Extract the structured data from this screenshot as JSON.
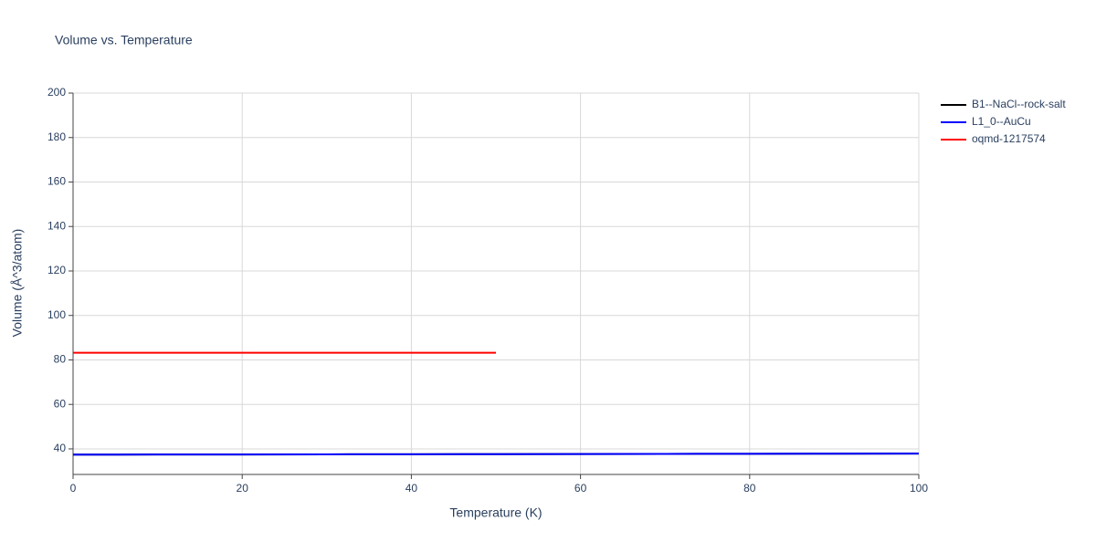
{
  "chart_data": {
    "type": "line",
    "title": "Volume vs. Temperature",
    "x_label": "Temperature (K)",
    "y_label": "Volume (Å^3/atom)",
    "x": [
      0,
      10,
      20,
      30,
      40,
      50,
      60,
      70,
      80,
      90,
      100
    ],
    "series": [
      {
        "name": "B1--NaCl--rock-salt",
        "color": "#000000",
        "values": [
          37.4,
          37.45,
          37.5,
          37.55,
          37.6,
          37.65,
          37.7,
          37.75,
          37.8,
          37.85,
          37.9
        ]
      },
      {
        "name": "L1_0--AuCu",
        "color": "#0000ff",
        "values": [
          37.4,
          37.45,
          37.5,
          37.55,
          37.6,
          37.65,
          37.7,
          37.75,
          37.8,
          37.85,
          37.9
        ]
      },
      {
        "name": "oqmd-1217574",
        "color": "#ff0000",
        "values": [
          83.2,
          83.2,
          83.2,
          83.2,
          83.2,
          83.2,
          null,
          null,
          null,
          null,
          null
        ]
      }
    ],
    "xlim": [
      0,
      100
    ],
    "xticks": [
      0,
      20,
      40,
      60,
      80,
      100
    ],
    "ylim": [
      28.5,
      200
    ],
    "yticks": [
      40,
      60,
      80,
      100,
      120,
      140,
      160,
      180,
      200
    ],
    "grid": true,
    "legend": "right"
  }
}
